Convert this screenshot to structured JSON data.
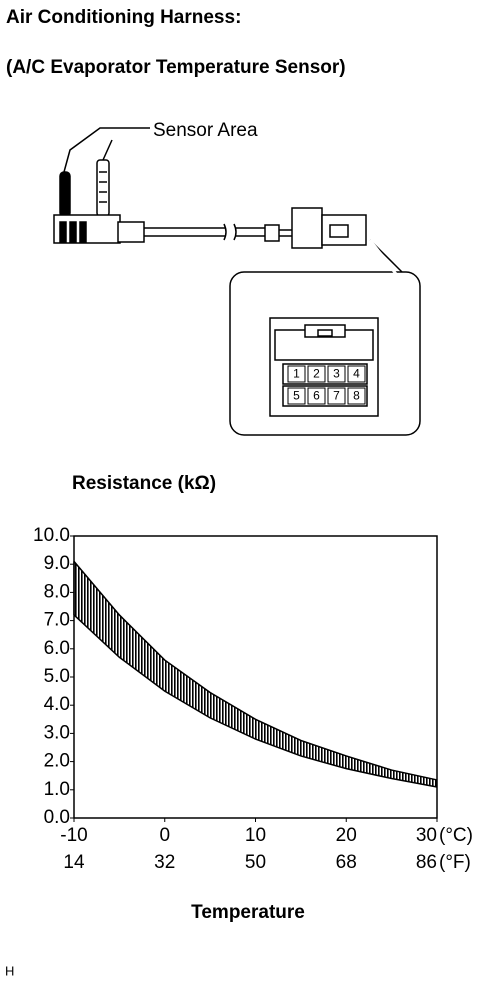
{
  "header": {
    "title": "Air Conditioning Harness:",
    "subtitle": "(A/C Evaporator Temperature Sensor)"
  },
  "diagram": {
    "callout": "Sensor Area",
    "pins": [
      "1",
      "2",
      "3",
      "4",
      "5",
      "6",
      "7",
      "8"
    ]
  },
  "chart_data": {
    "type": "range_area",
    "title": "Resistance (kΩ)",
    "x_label": "Temperature",
    "x": [
      -10,
      -5,
      0,
      5,
      10,
      15,
      20,
      25,
      30
    ],
    "series": [
      {
        "color": "#000000",
        "values": [
          9.1,
          7.2,
          5.6,
          4.45,
          3.5,
          2.75,
          2.2,
          1.7,
          1.35
        ]
      },
      {
        "color": "#000000",
        "values": [
          7.2,
          5.7,
          4.5,
          3.55,
          2.8,
          2.2,
          1.75,
          1.4,
          1.1
        ]
      }
    ],
    "xlim": [
      -10,
      30
    ],
    "xticks": [
      -10,
      0,
      10,
      20,
      30
    ],
    "x_unit": "(°C)",
    "xticks_fahrenheit": [
      14,
      32,
      50,
      68,
      86
    ],
    "x_unit_fahrenheit": "(°F)",
    "ylim": [
      0,
      10
    ],
    "yticks": [
      {
        "value": 0,
        "label": "0.0"
      },
      {
        "value": 1,
        "label": "1.0"
      },
      {
        "value": 2,
        "label": "2.0"
      },
      {
        "value": 3,
        "label": "3.0"
      },
      {
        "value": 4,
        "label": "4.0"
      },
      {
        "value": 5,
        "label": "5.0"
      },
      {
        "value": 6,
        "label": "6.0"
      },
      {
        "value": 7,
        "label": "7.0"
      },
      {
        "value": 8,
        "label": "8.0"
      },
      {
        "value": 9,
        "label": "9.0"
      },
      {
        "value": 10,
        "label": "10.0"
      }
    ]
  },
  "footer": {
    "code": "H"
  }
}
